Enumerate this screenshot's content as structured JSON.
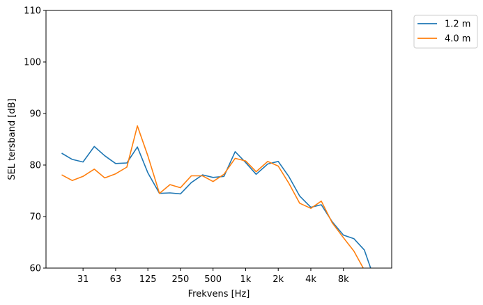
{
  "chart_data": {
    "type": "line",
    "xlabel": "Frekvens [Hz]",
    "ylabel": "SEL tersband [dB]",
    "ylim": [
      60,
      110
    ],
    "yticks": [
      60,
      70,
      80,
      90,
      100,
      110
    ],
    "x_scale": "log",
    "x_unit": "Hz",
    "xtick_values": [
      31.5,
      63,
      125,
      250,
      500,
      1000,
      2000,
      4000,
      8000
    ],
    "xtick_labels": [
      "31",
      "63",
      "125",
      "250",
      "500",
      "1k",
      "2k",
      "4k",
      "8k"
    ],
    "grid": false,
    "legend_position": "outside top-right",
    "x": [
      20,
      25,
      31.5,
      40,
      50,
      63,
      80,
      100,
      125,
      160,
      200,
      250,
      315,
      400,
      500,
      630,
      800,
      1000,
      1250,
      1600,
      2000,
      2500,
      3150,
      4000,
      5000,
      6300,
      8000,
      10000,
      12500,
      16000
    ],
    "series": [
      {
        "name": "1.2 m",
        "color": "#1f77b4",
        "values": [
          82.3,
          81.1,
          80.6,
          83.6,
          81.8,
          80.3,
          80.4,
          83.5,
          78.5,
          74.5,
          74.6,
          74.4,
          76.6,
          78.1,
          77.6,
          77.8,
          82.6,
          80.5,
          78.2,
          80.2,
          80.7,
          77.8,
          74.0,
          71.8,
          72.3,
          69.0,
          66.4,
          65.7,
          63.5,
          57.0
        ]
      },
      {
        "name": "4.0 m",
        "color": "#ff7f0e",
        "values": [
          78.1,
          77.0,
          77.8,
          79.2,
          77.5,
          78.3,
          79.6,
          87.6,
          81.8,
          74.5,
          76.2,
          75.6,
          77.9,
          77.9,
          76.8,
          78.2,
          81.3,
          80.8,
          78.7,
          80.7,
          79.8,
          76.5,
          72.6,
          71.6,
          73.0,
          68.8,
          65.9,
          63.3,
          59.6,
          55.0
        ]
      }
    ]
  }
}
